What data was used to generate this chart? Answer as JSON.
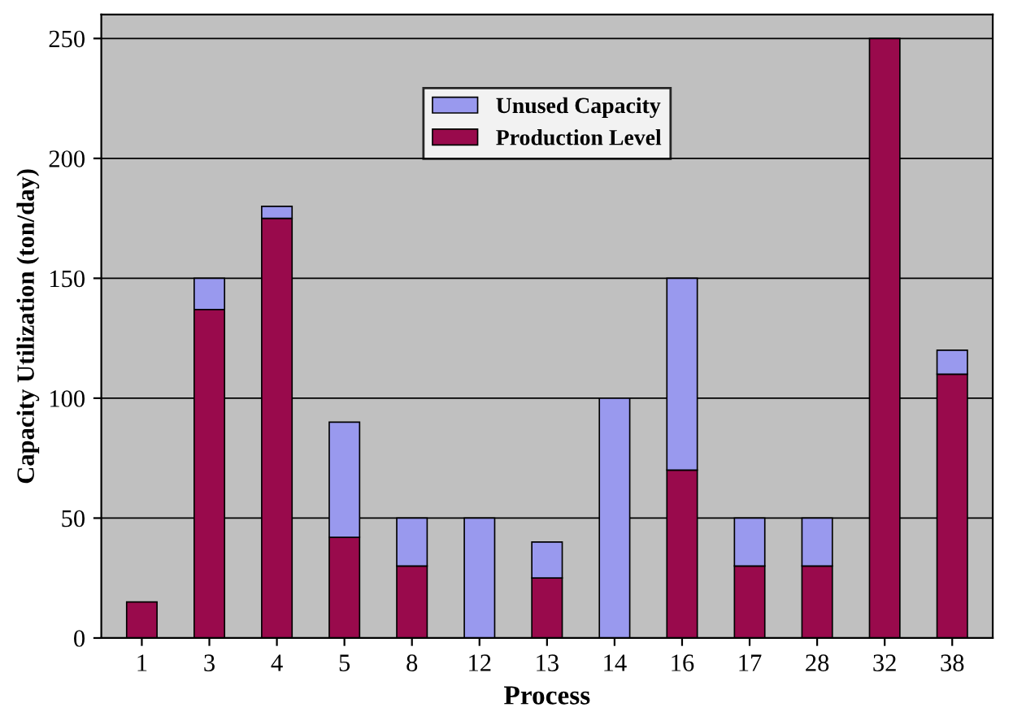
{
  "chart_data": {
    "type": "bar",
    "stacked": true,
    "xlabel": "Process",
    "ylabel": "Capacity Utilization (ton/day)",
    "categories": [
      "1",
      "3",
      "4",
      "5",
      "8",
      "12",
      "13",
      "14",
      "16",
      "17",
      "28",
      "32",
      "38"
    ],
    "series": [
      {
        "name": "Production Level",
        "color": "#990a4c",
        "values": [
          15,
          137,
          175,
          42,
          30,
          null,
          25,
          null,
          70,
          30,
          30,
          250,
          110
        ]
      },
      {
        "name": "Unused Capacity",
        "color": "#9999ee",
        "values": [
          null,
          13,
          5,
          48,
          20,
          50,
          15,
          100,
          80,
          20,
          20,
          null,
          10
        ]
      }
    ],
    "ylim": [
      0,
      260
    ],
    "yticks": [
      0,
      50,
      100,
      150,
      200,
      250
    ],
    "grid": "y",
    "legend": "top"
  }
}
